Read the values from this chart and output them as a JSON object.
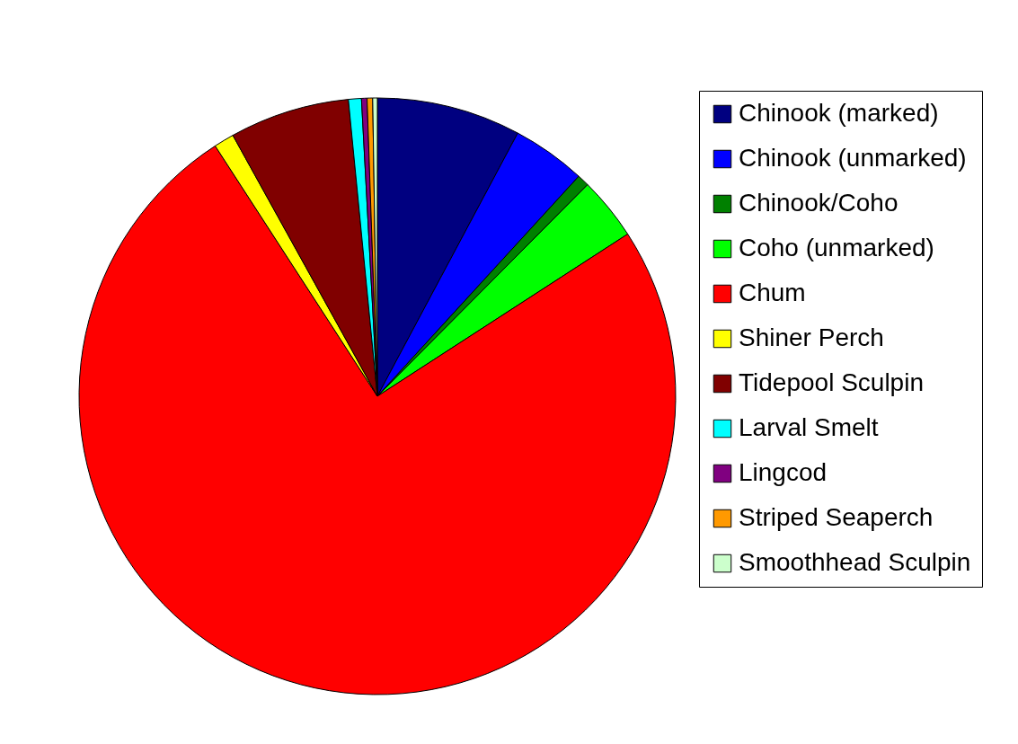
{
  "chart_data": {
    "type": "pie",
    "legend": "right",
    "categories": [
      "Chinook (marked)",
      "Chinook (unmarked)",
      "Chinook/Coho",
      "Coho (unmarked)",
      "Chum",
      "Shiner Perch",
      "Tidepool Sculpin",
      "Larval Smelt",
      "Lingcod",
      "Striped Seaperch",
      "Smoothhead Sculpin"
    ],
    "values": [
      7.8,
      4.0,
      0.65,
      3.4,
      75.0,
      1.1,
      6.5,
      0.7,
      0.3,
      0.3,
      0.25
    ],
    "colors": [
      "#000080",
      "#0000ff",
      "#008000",
      "#00ff00",
      "#ff0000",
      "#ffff00",
      "#800000",
      "#00ffff",
      "#800080",
      "#ff9900",
      "#ccffcc"
    ]
  }
}
